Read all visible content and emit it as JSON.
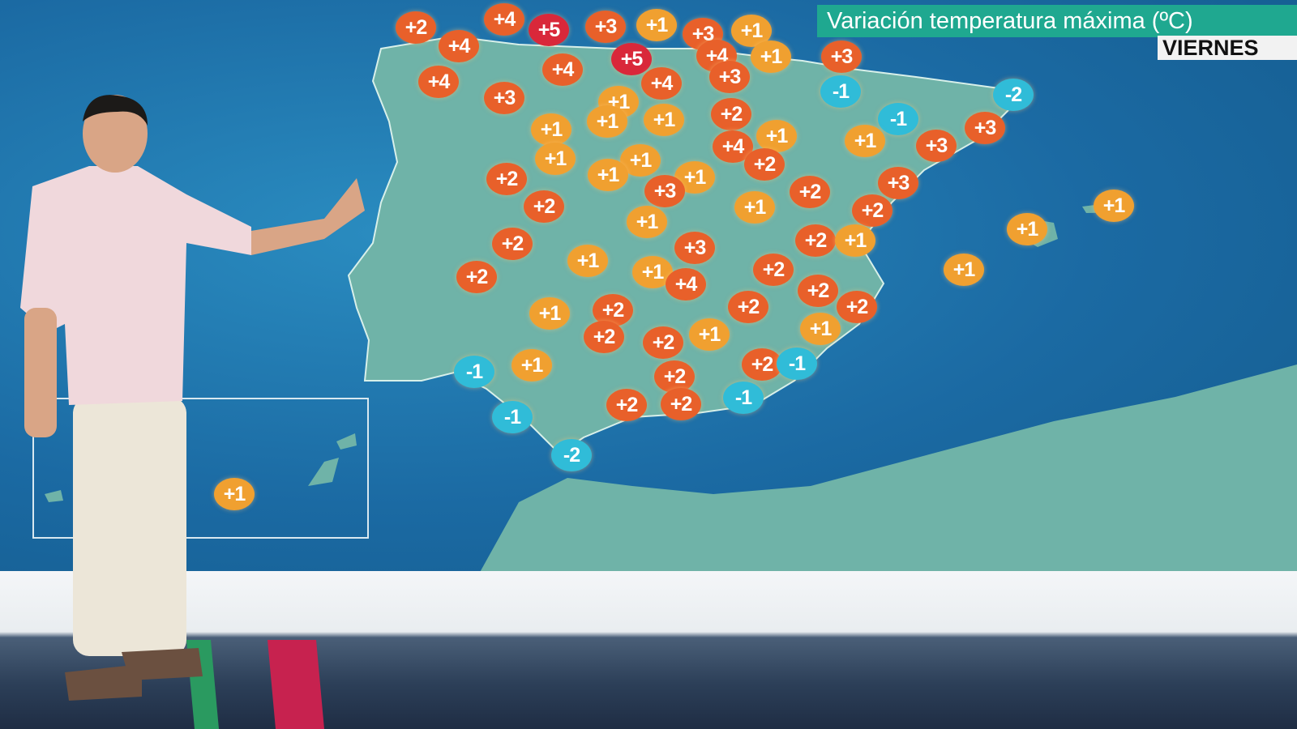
{
  "title": "Variación temperatura máxima (ºC)",
  "day": "VIERNES",
  "colors": {
    "plus_small": "#f0a030",
    "plus_mid": "#e8602a",
    "plus_high": "#d9283a",
    "minus": "#30bcd8",
    "title_bg": "#1fa890"
  },
  "badges": [
    "+2",
    "+4",
    "+5",
    "+3",
    "+1",
    "+3",
    "+1",
    "+4",
    "+4",
    "+5",
    "+4",
    "+1",
    "+3",
    "+3",
    "+4",
    "+3",
    "+4",
    "+1",
    "+1",
    "+1",
    "+2",
    "+1",
    "+1",
    "+1",
    "+4",
    "+2",
    "-1",
    "-1",
    "-2",
    "+3",
    "+3",
    "+1",
    "+2",
    "+1",
    "+1",
    "+1",
    "+3",
    "+3",
    "+2",
    "+2",
    "+1",
    "+2",
    "+1",
    "+1",
    "+1",
    "+2",
    "+3",
    "+2",
    "+1",
    "+1",
    "+1",
    "+2",
    "+1",
    "+4",
    "+2",
    "+2",
    "+2",
    "+1",
    "+2",
    "+2",
    "+1",
    "+1",
    "+2",
    "+2",
    "-1",
    "+1",
    "+2",
    "-1",
    "+2",
    "+2",
    "+2",
    "-1",
    "-1",
    "-2",
    "+1"
  ]
}
